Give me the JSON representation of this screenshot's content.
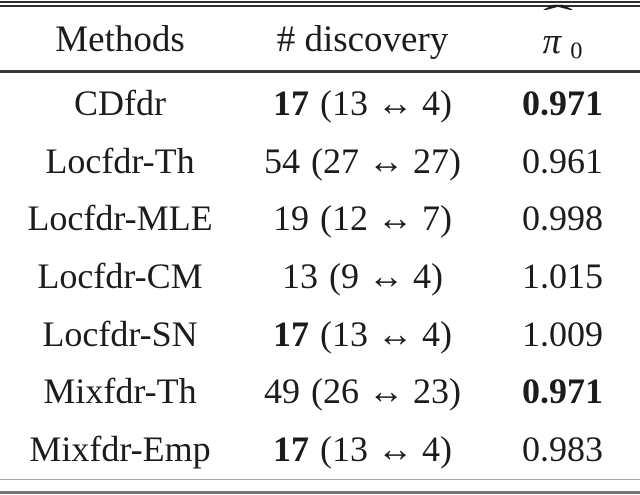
{
  "table": {
    "headers": {
      "methods": "Methods",
      "discovery": "# discovery",
      "pi0": {
        "hat": "ˆ",
        "symbol": "π",
        "subscript": "0"
      }
    },
    "rows": [
      {
        "method": "CDfdr",
        "count": "17",
        "count_bold": true,
        "detail": "(13 ↔ 4)",
        "pi0": "0.971",
        "pi0_bold": true
      },
      {
        "method": "Locfdr-Th",
        "count": "54",
        "count_bold": false,
        "detail": "(27 ↔ 27)",
        "pi0": "0.961",
        "pi0_bold": false
      },
      {
        "method": "Locfdr-MLE",
        "count": "19",
        "count_bold": false,
        "detail": "(12 ↔ 7)",
        "pi0": "0.998",
        "pi0_bold": false
      },
      {
        "method": "Locfdr-CM",
        "count": "13",
        "count_bold": false,
        "detail": "(9 ↔ 4)",
        "pi0": "1.015",
        "pi0_bold": false
      },
      {
        "method": "Locfdr-SN",
        "count": "17",
        "count_bold": true,
        "detail": "(13 ↔ 4)",
        "pi0": "1.009",
        "pi0_bold": false
      },
      {
        "method": "Mixfdr-Th",
        "count": "49",
        "count_bold": false,
        "detail": "(26 ↔ 23)",
        "pi0": "0.971",
        "pi0_bold": true
      },
      {
        "method": "Mixfdr-Emp",
        "count": "17",
        "count_bold": true,
        "detail": "(13 ↔ 4)",
        "pi0": "0.983",
        "pi0_bold": false
      }
    ]
  },
  "colors": {
    "background": "#ffffff",
    "text": "#1c1c1c",
    "rule_dark": "#2e2e2e",
    "rule_mid": "#3a3a3a",
    "rule_bottom_thin": "#a8a8a8",
    "rule_bottom_thick": "#757575"
  }
}
